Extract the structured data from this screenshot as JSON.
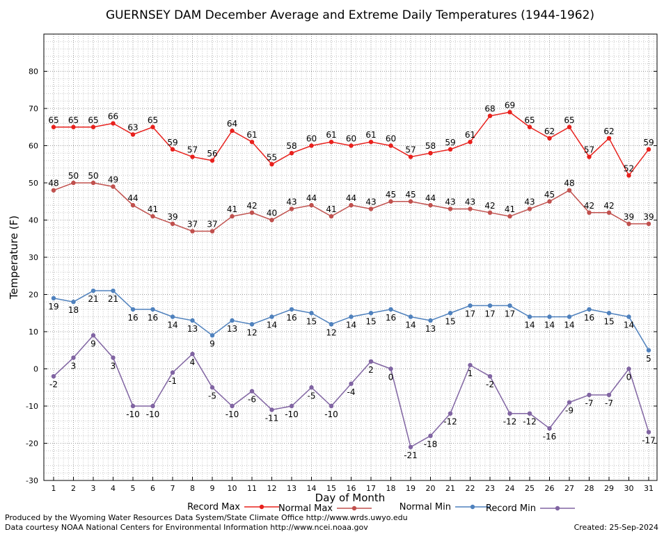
{
  "chart_data": {
    "type": "line",
    "title": "GUERNSEY DAM December Average and Extreme Daily Temperatures (1944-1962)",
    "xlabel": "Day of Month",
    "ylabel": "Temperature (F)",
    "ylim": [
      -30,
      90
    ],
    "y_ticks": [
      -30,
      -20,
      -10,
      0,
      10,
      20,
      30,
      40,
      50,
      60,
      70,
      80
    ],
    "grid": true,
    "legend_position": "bottom",
    "x": [
      1,
      2,
      3,
      4,
      5,
      6,
      7,
      8,
      9,
      10,
      11,
      12,
      13,
      14,
      15,
      16,
      17,
      18,
      19,
      20,
      21,
      22,
      23,
      24,
      25,
      26,
      27,
      28,
      29,
      30,
      31
    ],
    "series": [
      {
        "name": "Record Max",
        "color": "#e8201c",
        "label_position": "above",
        "values": [
          65,
          65,
          65,
          66,
          63,
          65,
          59,
          57,
          56,
          64,
          61,
          55,
          58,
          60,
          61,
          60,
          61,
          60,
          57,
          58,
          59,
          61,
          68,
          69,
          65,
          62,
          65,
          57,
          62,
          52,
          59
        ]
      },
      {
        "name": "Normal Max",
        "color": "#c0504d",
        "label_position": "above",
        "values": [
          48,
          50,
          50,
          49,
          44,
          41,
          39,
          37,
          37,
          41,
          42,
          40,
          43,
          44,
          41,
          44,
          43,
          45,
          45,
          44,
          43,
          43,
          42,
          41,
          43,
          45,
          48,
          42,
          42,
          39,
          39
        ]
      },
      {
        "name": "Normal Min",
        "color": "#4f81bd",
        "label_position": "below",
        "values": [
          19,
          18,
          21,
          21,
          16,
          16,
          14,
          13,
          9,
          13,
          12,
          14,
          16,
          15,
          12,
          14,
          15,
          16,
          14,
          13,
          15,
          17,
          17,
          17,
          14,
          14,
          14,
          16,
          15,
          14,
          5
        ]
      },
      {
        "name": "Record Min",
        "color": "#8064a2",
        "label_position": "below",
        "values": [
          -2,
          3,
          9,
          3,
          -10,
          -10,
          -1,
          4,
          -5,
          -10,
          -6,
          -11,
          -10,
          -5,
          -10,
          -4,
          2,
          0,
          -21,
          -18,
          -12,
          1,
          -2,
          -12,
          -12,
          -16,
          -9,
          -7,
          -7,
          0,
          -17
        ]
      }
    ]
  },
  "footer": {
    "produced_by": "Produced by the Wyoming Water Resources Data System/State Climate Office http://www.wrds.uwyo.edu",
    "courtesy": "Data courtesy NOAA National Centers for Environmental Information http://www.ncei.noaa.gov",
    "created": "Created:  25-Sep-2024"
  }
}
